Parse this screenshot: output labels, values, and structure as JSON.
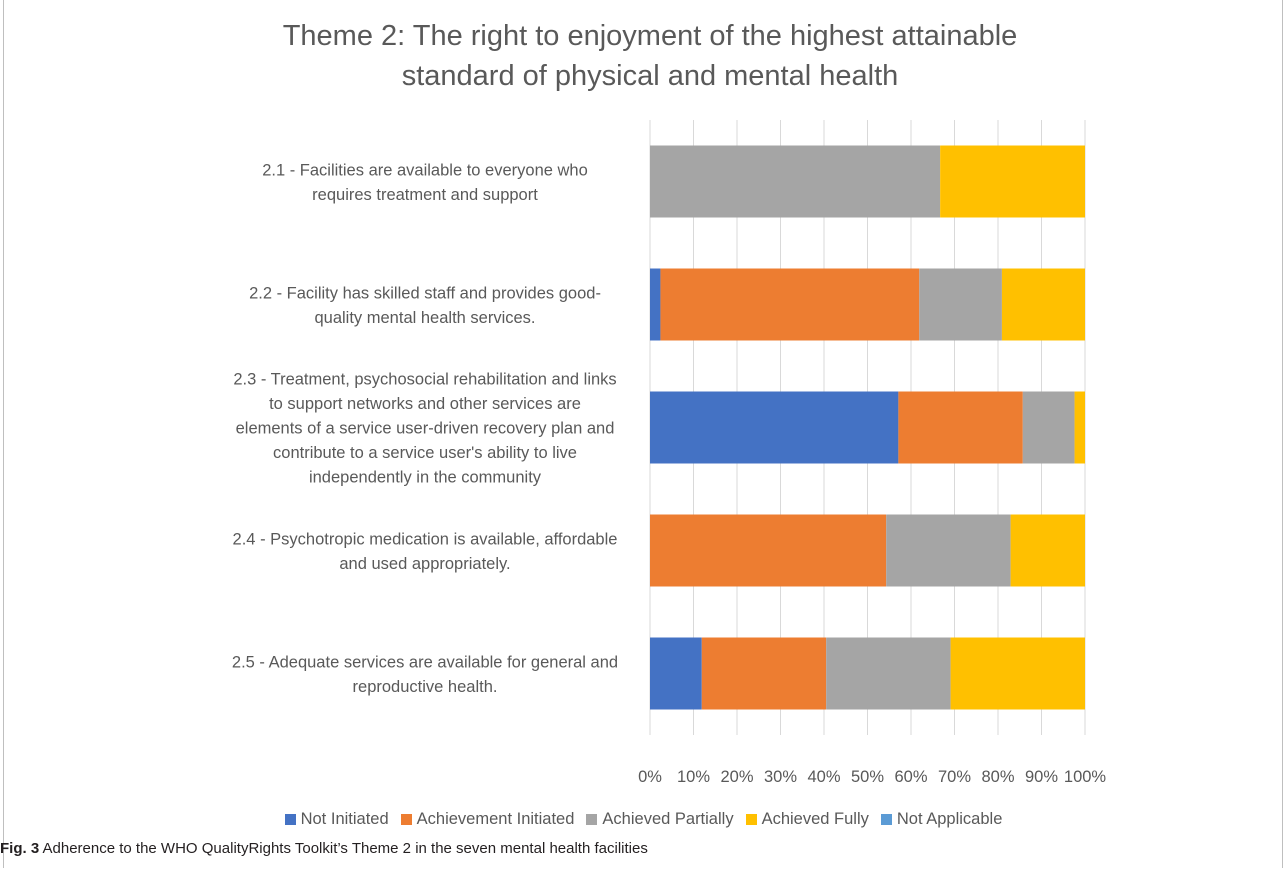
{
  "chart_data": {
    "type": "bar",
    "orientation": "horizontal",
    "stacked": "100%",
    "title_line_1": "Theme 2: The right to enjoyment of the highest attainable",
    "title_line_2": "standard of physical and mental health",
    "categories": [
      [
        "2.1 - Facilities are available to everyone who",
        "requires treatment and support"
      ],
      [
        "2.2 - Facility has skilled staff and provides good-",
        "quality mental health services."
      ],
      [
        "2.3 - Treatment, psychosocial rehabilitation and links",
        "to support networks and other services are",
        "elements of a service user-driven recovery plan and",
        "contribute to a service user's ability to live",
        "independently in the community"
      ],
      [
        "2.4 - Psychotropic medication is available, affordable",
        "and used appropriately."
      ],
      [
        "2.5 - Adequate services are available for general and",
        "reproductive health."
      ]
    ],
    "series": [
      {
        "name": "Not Initiated",
        "color": "#4472c4",
        "values": [
          0,
          2.4,
          57.1,
          0,
          11.9
        ]
      },
      {
        "name": "Achievement Initiated",
        "color": "#ed7d31",
        "values": [
          0,
          59.5,
          28.6,
          54.3,
          28.6
        ]
      },
      {
        "name": "Achieved Partially",
        "color": "#a5a5a5",
        "values": [
          66.7,
          19.0,
          11.9,
          28.6,
          28.6
        ]
      },
      {
        "name": "Achieved Fully",
        "color": "#ffc000",
        "values": [
          33.3,
          19.1,
          2.4,
          17.1,
          30.9
        ]
      },
      {
        "name": "Not Applicable",
        "color": "#5b9bd5",
        "values": [
          0,
          0,
          0,
          0,
          0
        ]
      }
    ],
    "xlim": [
      0,
      100
    ],
    "x_ticks": [
      "0%",
      "10%",
      "20%",
      "30%",
      "40%",
      "50%",
      "60%",
      "70%",
      "80%",
      "90%",
      "100%"
    ],
    "grid": true,
    "legend_position": "bottom"
  },
  "caption": {
    "label": "Fig. 3",
    "text": "Adherence to the WHO QualityRights Toolkit’s Theme 2 in the seven mental health facilities"
  }
}
